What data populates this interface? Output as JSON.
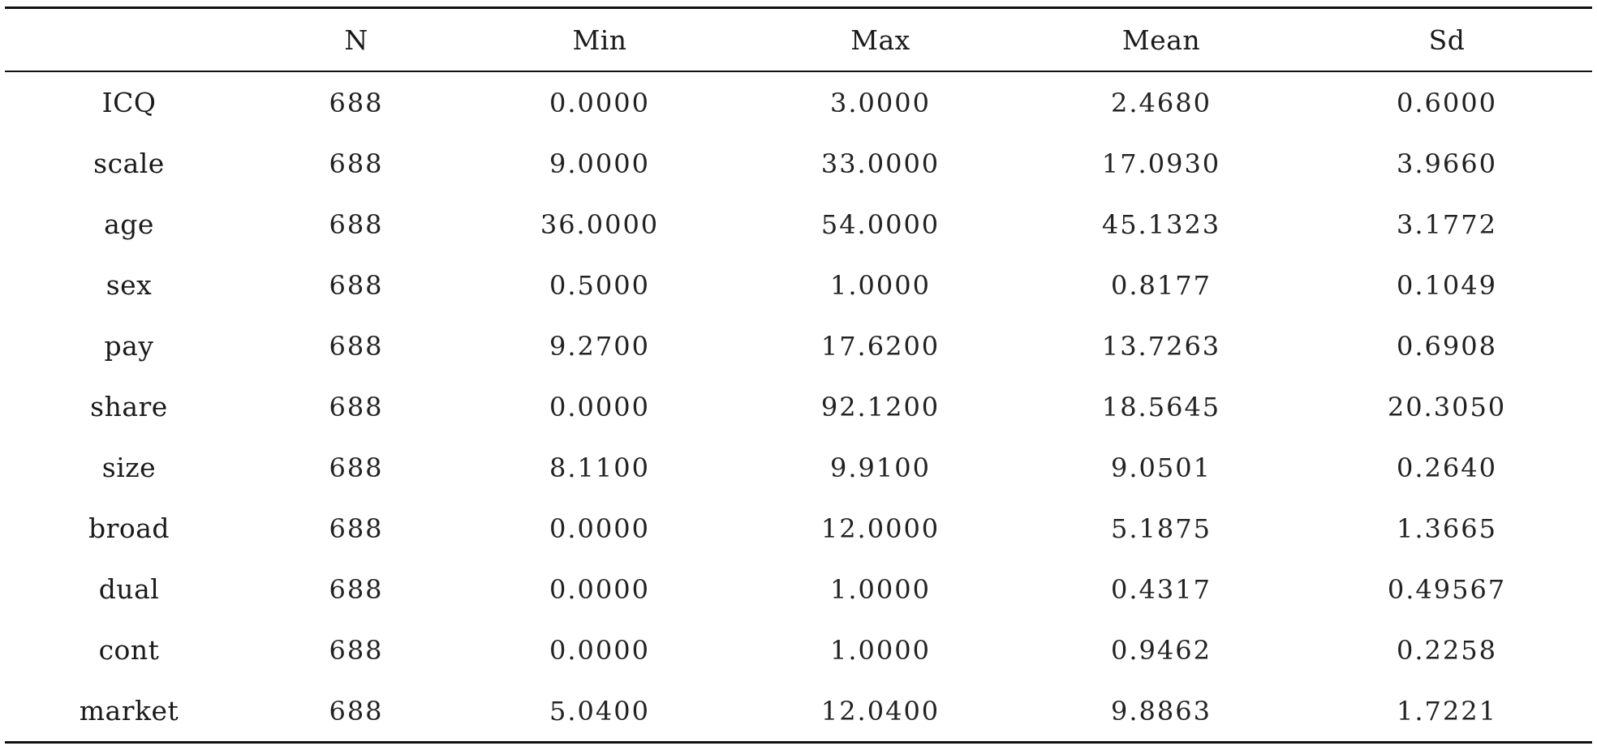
{
  "table": {
    "headers": [
      "",
      "N",
      "Min",
      "Max",
      "Mean",
      "Sd"
    ],
    "rows": [
      [
        "ICQ",
        "688",
        "0.0000",
        "3.0000",
        "2.4680",
        "0.6000"
      ],
      [
        "scale",
        "688",
        "9.0000",
        "33.0000",
        "17.0930",
        "3.9660"
      ],
      [
        "age",
        "688",
        "36.0000",
        "54.0000",
        "45.1323",
        "3.1772"
      ],
      [
        "sex",
        "688",
        "0.5000",
        "1.0000",
        "0.8177",
        "0.1049"
      ],
      [
        "pay",
        "688",
        "9.2700",
        "17.6200",
        "13.7263",
        "0.6908"
      ],
      [
        "share",
        "688",
        "0.0000",
        "92.1200",
        "18.5645",
        "20.3050"
      ],
      [
        "size",
        "688",
        "8.1100",
        "9.9100",
        "9.0501",
        "0.2640"
      ],
      [
        "broad",
        "688",
        "0.0000",
        "12.0000",
        "5.1875",
        "1.3665"
      ],
      [
        "dual",
        "688",
        "0.0000",
        "1.0000",
        "0.4317",
        "0.49567"
      ],
      [
        "cont",
        "688",
        "0.0000",
        "1.0000",
        "0.9462",
        "0.2258"
      ],
      [
        "market",
        "688",
        "5.0400",
        "12.0400",
        "9.8863",
        "1.7221"
      ]
    ]
  }
}
